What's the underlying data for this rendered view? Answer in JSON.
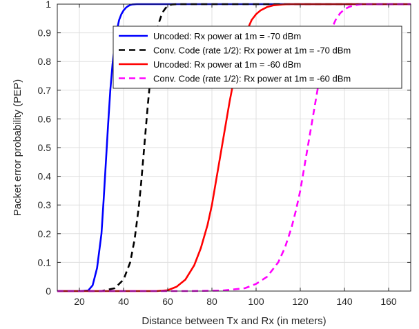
{
  "chart_data": {
    "type": "line",
    "title": "",
    "xlabel": "Distance between Tx and Rx (in meters)",
    "ylabel": "Packet error probability (PEP)",
    "xlim": [
      10,
      170
    ],
    "ylim": [
      0,
      1
    ],
    "x_ticks": [
      20,
      40,
      60,
      80,
      100,
      120,
      140,
      160
    ],
    "y_ticks": [
      0,
      0.1,
      0.2,
      0.3,
      0.4,
      0.5,
      0.6,
      0.7,
      0.8,
      0.9,
      1
    ],
    "grid": true,
    "legend_position": "top-right",
    "series": [
      {
        "name": "Uncoded: Rx power at 1m = -70 dBm",
        "color": "#0000ff",
        "dash": "solid",
        "x": [
          10,
          20,
          24,
          26,
          28,
          30,
          31,
          32,
          33,
          34,
          35,
          36,
          37,
          38,
          39,
          40,
          41,
          42,
          43,
          44,
          46,
          50,
          60,
          80,
          100,
          120,
          140,
          170
        ],
        "y": [
          0,
          0,
          0.002,
          0.02,
          0.08,
          0.2,
          0.32,
          0.45,
          0.58,
          0.7,
          0.79,
          0.86,
          0.91,
          0.945,
          0.965,
          0.978,
          0.987,
          0.993,
          0.997,
          0.999,
          1,
          1,
          1,
          1,
          1,
          1,
          1,
          1
        ]
      },
      {
        "name": "Conv. Code (rate 1/2): Rx power at 1m = -70 dBm",
        "color": "#000000",
        "dash": "dashed",
        "x": [
          10,
          30,
          36,
          40,
          43,
          45,
          47,
          48,
          49,
          50,
          51,
          52,
          53,
          54,
          55,
          56,
          57,
          58,
          59,
          60,
          61,
          62,
          64,
          70,
          100,
          140,
          170
        ],
        "y": [
          0,
          0,
          0.01,
          0.04,
          0.1,
          0.18,
          0.3,
          0.38,
          0.47,
          0.56,
          0.65,
          0.73,
          0.8,
          0.86,
          0.9,
          0.935,
          0.958,
          0.975,
          0.986,
          0.993,
          0.997,
          0.999,
          1,
          1,
          1,
          1,
          1
        ]
      },
      {
        "name": "Uncoded: Rx power at 1m = -60 dBm",
        "color": "#ff0000",
        "dash": "solid",
        "x": [
          10,
          55,
          60,
          64,
          68,
          72,
          75,
          78,
          80,
          82,
          84,
          86,
          88,
          90,
          92,
          94,
          96,
          98,
          100,
          102,
          105,
          108,
          112,
          115,
          120,
          140,
          170
        ],
        "y": [
          0,
          0,
          0.003,
          0.015,
          0.04,
          0.09,
          0.15,
          0.23,
          0.3,
          0.39,
          0.48,
          0.57,
          0.66,
          0.74,
          0.81,
          0.87,
          0.91,
          0.945,
          0.965,
          0.978,
          0.99,
          0.996,
          0.999,
          1,
          1,
          1,
          1
        ]
      },
      {
        "name": "Conv. Code (rate 1/2): Rx power at 1m = -60 dBm",
        "color": "#ff00ff",
        "dash": "dashed",
        "x": [
          10,
          70,
          85,
          95,
          100,
          105,
          110,
          113,
          116,
          118,
          120,
          122,
          124,
          126,
          128,
          130,
          132,
          134,
          136,
          138,
          140,
          142,
          144,
          146,
          148,
          152,
          160,
          170
        ],
        "y": [
          0,
          0,
          0.002,
          0.01,
          0.025,
          0.05,
          0.1,
          0.15,
          0.22,
          0.28,
          0.35,
          0.44,
          0.53,
          0.62,
          0.71,
          0.79,
          0.86,
          0.91,
          0.945,
          0.968,
          0.982,
          0.99,
          0.995,
          0.998,
          1,
          1,
          1,
          1
        ]
      }
    ]
  }
}
